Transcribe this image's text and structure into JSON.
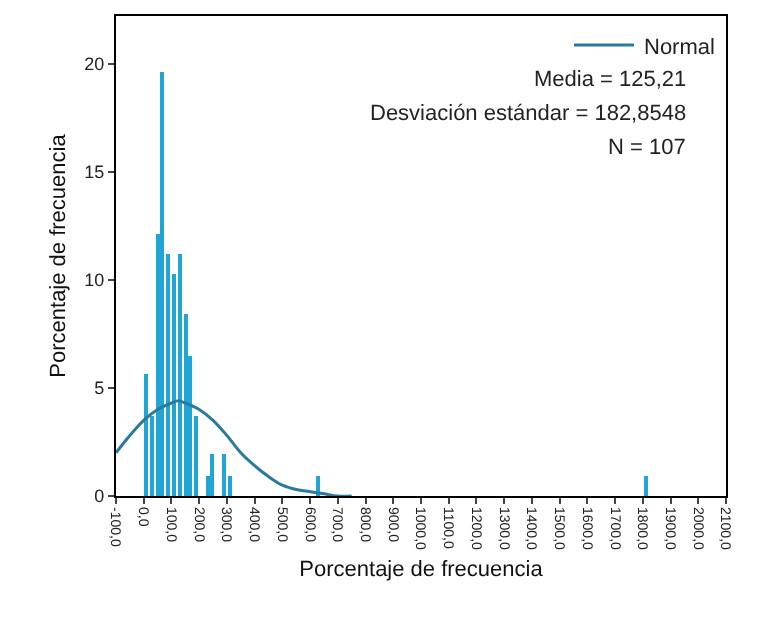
{
  "chart_data": {
    "type": "histogram",
    "xlabel": "Porcentaje de frecuencia",
    "ylabel": "Porcentaje de frecuencia",
    "bins": [
      0,
      20,
      40,
      60,
      80,
      100,
      120,
      140,
      160,
      180,
      200,
      220,
      240,
      260,
      280,
      300,
      320,
      340,
      360,
      380,
      400,
      420,
      440,
      460,
      480,
      500,
      520,
      540,
      560,
      580,
      600,
      620,
      640,
      660,
      680,
      700,
      720,
      740,
      760,
      780,
      800,
      820,
      840,
      860,
      880,
      900,
      920,
      940,
      960,
      980,
      1000,
      1020,
      1040,
      1060,
      1080,
      1100,
      1120,
      1140,
      1160,
      1180,
      1200,
      1220,
      1240,
      1260,
      1280,
      1300,
      1320,
      1340,
      1360,
      1380,
      1400,
      1420,
      1440,
      1460,
      1480,
      1500,
      1520,
      1540,
      1560,
      1580,
      1600,
      1620,
      1640,
      1660,
      1680,
      1700,
      1720,
      1740,
      1760,
      1780,
      1800,
      1820
    ],
    "values": [
      5.6,
      3.7,
      12.1,
      19.6,
      11.2,
      10.3,
      11.2,
      8.4,
      6.5,
      3.7,
      0,
      0.9,
      1.9,
      0,
      1.9,
      0.9,
      0,
      0,
      0,
      0,
      0,
      0,
      0,
      0,
      0,
      0,
      0,
      0,
      0,
      0,
      0,
      0.9,
      0,
      0,
      0,
      0,
      0,
      0,
      0,
      0,
      0,
      0,
      0,
      0,
      0,
      0,
      0,
      0,
      0,
      0,
      0,
      0,
      0,
      0,
      0,
      0,
      0,
      0,
      0,
      0,
      0,
      0,
      0,
      0,
      0,
      0,
      0,
      0,
      0,
      0,
      0,
      0,
      0,
      0,
      0,
      0,
      0,
      0,
      0,
      0,
      0,
      0,
      0,
      0,
      0,
      0,
      0,
      0,
      0,
      0,
      0.9
    ],
    "color": "#1fa6d6",
    "series": [
      {
        "type": "line",
        "name": "Normal",
        "color": "#2a7aa0",
        "x": [
          -100,
          -50,
          0,
          50,
          100,
          125,
          150,
          200,
          250,
          300,
          350,
          400,
          450,
          500,
          550,
          600,
          650,
          700,
          750
        ],
        "values": [
          2,
          2.8,
          3.5,
          4,
          4.3,
          4.4,
          4.3,
          4,
          3.5,
          2.8,
          2,
          1.4,
          0.9,
          0.5,
          0.3,
          0.2,
          0.1,
          0,
          0
        ]
      }
    ],
    "annotations": [
      "Media = 125,21",
      "Desviación estándar = 182,8548",
      "N = 107"
    ],
    "xlim": [
      -100,
      2100
    ],
    "xticks": [
      {
        "value": -100,
        "label": "-100,0"
      },
      {
        "value": 0,
        "label": "0,0"
      },
      {
        "value": 100,
        "label": "100,0"
      },
      {
        "value": 200,
        "label": "200,0"
      },
      {
        "value": 300,
        "label": "300,0"
      },
      {
        "value": 400,
        "label": "400,0"
      },
      {
        "value": 500,
        "label": "500,0"
      },
      {
        "value": 600,
        "label": "600,0"
      },
      {
        "value": 700,
        "label": "700,0"
      },
      {
        "value": 800,
        "label": "800,0"
      },
      {
        "value": 900,
        "label": "900,0"
      },
      {
        "value": 1000,
        "label": "1000,0"
      },
      {
        "value": 1100,
        "label": "1100,0"
      },
      {
        "value": 1200,
        "label": "1200,0"
      },
      {
        "value": 1300,
        "label": "1300,0"
      },
      {
        "value": 1400,
        "label": "1400,0"
      },
      {
        "value": 1500,
        "label": "1500,0"
      },
      {
        "value": 1600,
        "label": "1600,0"
      },
      {
        "value": 1700,
        "label": "1700,0"
      },
      {
        "value": 1800,
        "label": "1800,0"
      },
      {
        "value": 1900,
        "label": "1900,0"
      },
      {
        "value": 2000,
        "label": "2000,0"
      },
      {
        "value": 2100,
        "label": "2100,0"
      }
    ],
    "ylim": [
      0,
      22.2
    ],
    "yticks": [
      0,
      5,
      10,
      15,
      20
    ],
    "grid": false,
    "legend": "top right"
  }
}
